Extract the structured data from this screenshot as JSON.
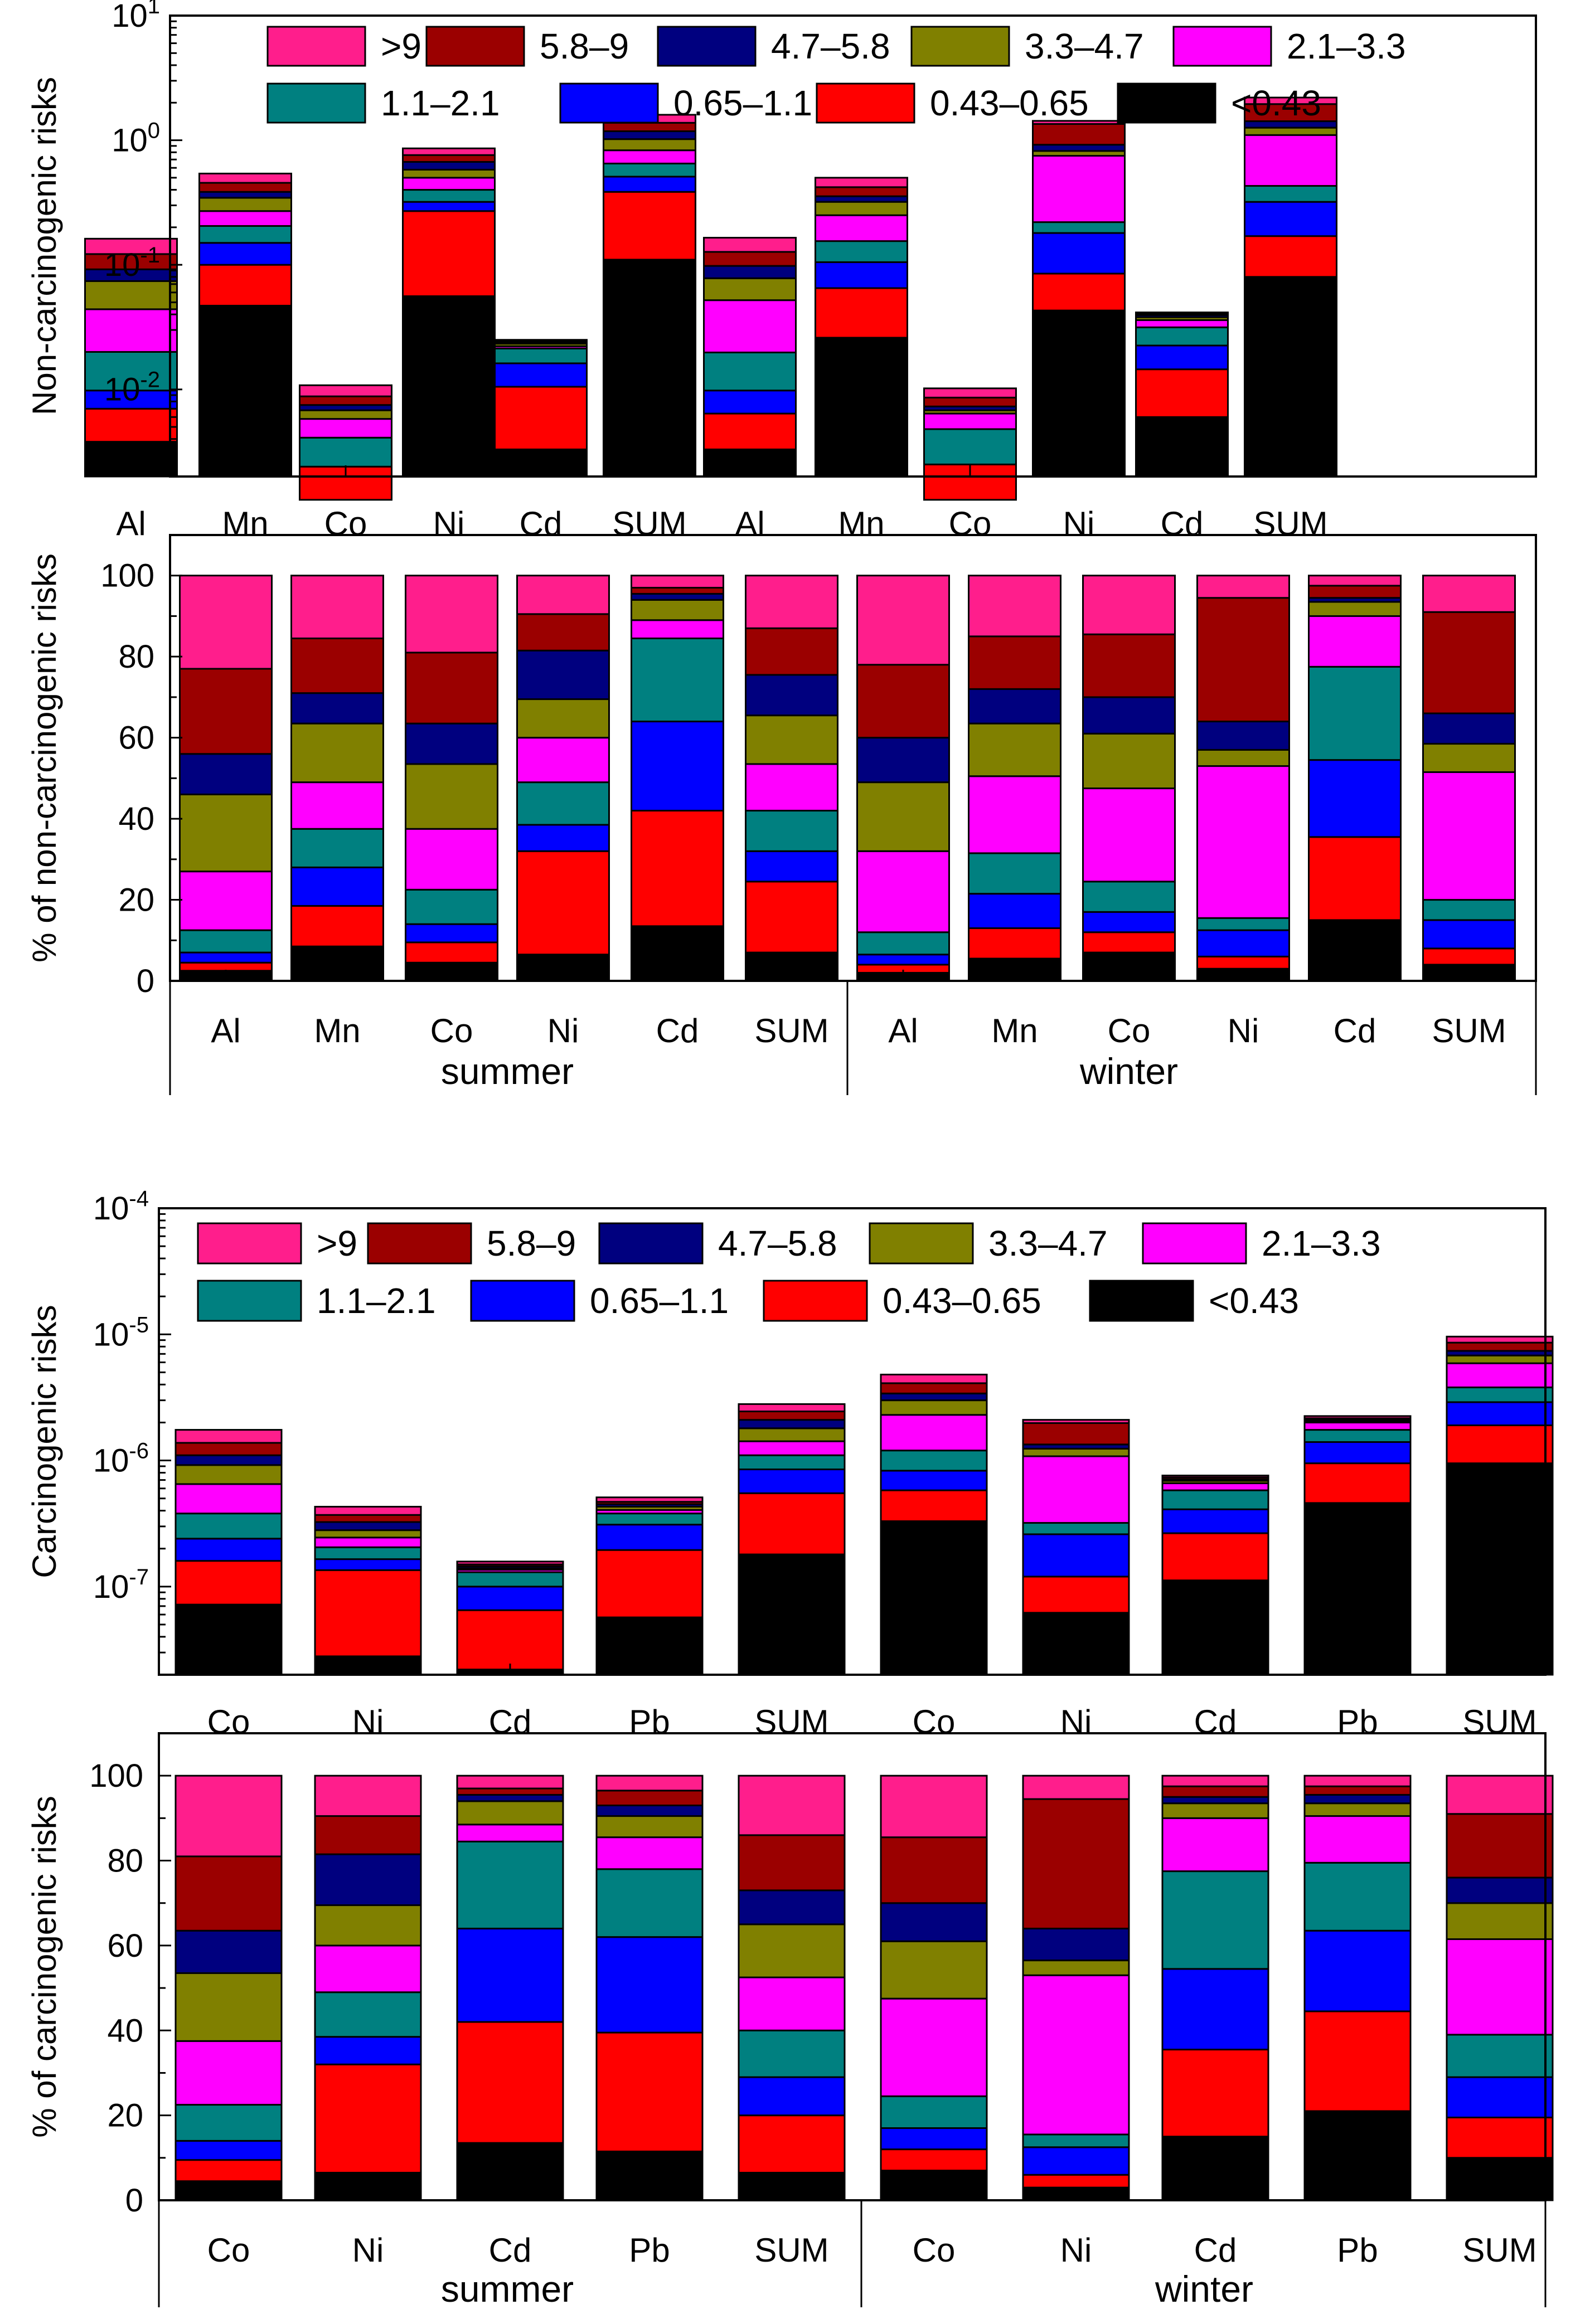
{
  "figure": {
    "bin_labels": [
      ">9",
      "5.8–9",
      "4.7–5.8",
      "3.3–4.7",
      "2.1–3.3",
      "1.1–2.1",
      "0.65–1.1",
      "0.43–0.65",
      "<0.43"
    ],
    "colors": [
      "#ff1e8c",
      "#9b0000",
      "#00007f",
      "#808000",
      "#ff00ff",
      "#008080",
      "#0000ff",
      "#ff0000",
      "#000000"
    ]
  },
  "chart_data": [
    {
      "id": "nc_abs",
      "type": "bar",
      "stacked": true,
      "yscale": "log",
      "ylabel": "Non-carcinogenic risks",
      "ylim": [
        0.002,
        10
      ],
      "ytick_labels": [
        "10^-2",
        "10^-1",
        "10^0",
        "10^1"
      ],
      "categories": [
        "Al",
        "Mn",
        "Co",
        "Ni",
        "Cd",
        "SUM",
        "Al",
        "Mn",
        "Co",
        "Ni",
        "Cd",
        "SUM"
      ],
      "group_labels": [],
      "bin_labels": [
        ">9",
        "5.8–9",
        "4.7–5.8",
        "3.3–4.7",
        "2.1–3.3",
        "1.1–2.1",
        "0.65–1.1",
        "0.43–0.65",
        "<0.43"
      ],
      "legend": "top",
      "boundaries": [
        [
          0.0038,
          0.007,
          0.0098,
          0.02,
          0.044,
          0.074,
          0.092,
          0.122,
          0.162
        ],
        [
          0.047,
          0.1,
          0.15,
          0.205,
          0.27,
          0.345,
          0.385,
          0.455,
          0.54
        ],
        [
          0.0013,
          0.0024,
          0.0024,
          0.0041,
          0.0058,
          0.0068,
          0.0075,
          0.0088,
          0.0108
        ],
        [
          0.056,
          0.27,
          0.32,
          0.4,
          0.5,
          0.58,
          0.67,
          0.76,
          0.86
        ],
        [
          0.0033,
          0.0105,
          0.0162,
          0.0213,
          0.0222,
          0.0233,
          0.0238,
          0.0245,
          0.025
        ],
        [
          0.11,
          0.385,
          0.51,
          0.65,
          0.83,
          1.02,
          1.18,
          1.38,
          1.6
        ],
        [
          0.0033,
          0.0064,
          0.0098,
          0.0198,
          0.052,
          0.078,
          0.098,
          0.127,
          0.165
        ],
        [
          0.026,
          0.065,
          0.105,
          0.155,
          0.25,
          0.32,
          0.355,
          0.42,
          0.5
        ],
        [
          0.0013,
          0.0025,
          0.0025,
          0.0048,
          0.0064,
          0.0068,
          0.0073,
          0.0086,
          0.0102
        ],
        [
          0.043,
          0.085,
          0.18,
          0.22,
          0.75,
          0.82,
          0.92,
          1.35,
          1.43
        ],
        [
          0.006,
          0.0145,
          0.0225,
          0.0315,
          0.036,
          0.038,
          0.0395,
          0.0405,
          0.0415
        ],
        [
          0.08,
          0.17,
          0.32,
          0.43,
          1.1,
          1.26,
          1.42,
          1.95,
          2.2
        ]
      ]
    },
    {
      "id": "nc_pct",
      "type": "bar",
      "stacked": true,
      "yscale": "linear",
      "ylabel": "% of non-carcinogenic risks",
      "ylim": [
        0,
        110
      ],
      "ytick_labels": [
        "0",
        "20",
        "40",
        "60",
        "80",
        "100"
      ],
      "categories": [
        "Al",
        "Mn",
        "Co",
        "Ni",
        "Cd",
        "SUM",
        "Al",
        "Mn",
        "Co",
        "Ni",
        "Cd",
        "SUM"
      ],
      "group_labels": [
        "summer",
        "winter"
      ],
      "bin_labels": [
        ">9",
        "5.8–9",
        "4.7–5.8",
        "3.3–4.7",
        "2.1–3.3",
        "1.1–2.1",
        "0.65–1.1",
        "0.43–0.65",
        "<0.43"
      ],
      "legend": "none",
      "boundaries": [
        [
          2.5,
          4.5,
          7,
          12.5,
          27,
          46,
          56,
          77,
          100
        ],
        [
          8.5,
          18.5,
          28,
          37.5,
          49,
          63.5,
          71,
          84.5,
          100
        ],
        [
          4.5,
          9.5,
          14,
          22.5,
          37.5,
          53.5,
          63.5,
          81,
          100
        ],
        [
          6.5,
          32,
          38.5,
          49,
          60,
          69.5,
          81.5,
          90.5,
          100
        ],
        [
          13.5,
          42,
          64,
          84.5,
          89,
          94,
          95.5,
          97,
          100
        ],
        [
          7,
          24.5,
          32,
          42,
          53.5,
          65.5,
          75.5,
          87,
          100
        ],
        [
          2,
          4,
          6.5,
          12,
          32,
          49,
          60,
          78,
          100
        ],
        [
          5.5,
          13,
          21.5,
          31.5,
          50.5,
          63.5,
          72,
          85,
          100
        ],
        [
          7,
          12,
          17,
          24.5,
          47.5,
          61,
          70,
          85.5,
          100
        ],
        [
          3,
          6,
          12.5,
          15.5,
          53,
          57,
          64,
          94.5,
          100
        ],
        [
          15,
          35.5,
          54.5,
          77.5,
          90,
          93.5,
          94.5,
          97.5,
          100
        ],
        [
          4,
          8,
          15,
          20,
          51.5,
          58.5,
          66,
          91,
          100
        ]
      ]
    },
    {
      "id": "ca_abs",
      "type": "bar",
      "stacked": true,
      "yscale": "log",
      "ylabel": "Carcinogenic risks",
      "ylim": [
        2e-08,
        0.0001
      ],
      "ytick_labels": [
        "10^-7",
        "10^-6",
        "10^-5",
        "10^-4"
      ],
      "categories": [
        "Co",
        "Ni",
        "Cd",
        "Pb",
        "SUM",
        "Co",
        "Ni",
        "Cd",
        "Pb",
        "SUM"
      ],
      "group_labels": [],
      "bin_labels": [
        ">9",
        "5.8–9",
        "4.7–5.8",
        "3.3–4.7",
        "2.1–3.3",
        "1.1–2.1",
        "0.65–1.1",
        "0.43–0.65",
        "<0.43"
      ],
      "legend": "top",
      "boundaries": [
        [
          7.2e-08,
          1.6e-07,
          2.4e-07,
          3.8e-07,
          6.5e-07,
          9.2e-07,
          1.1e-06,
          1.38e-06,
          1.75e-06
        ],
        [
          2.8e-08,
          1.35e-07,
          1.65e-07,
          2.05e-07,
          2.45e-07,
          2.8e-07,
          3.25e-07,
          3.7e-07,
          4.3e-07
        ],
        [
          2.2e-08,
          6.5e-08,
          1e-07,
          1.3e-07,
          1.36e-07,
          1.4e-07,
          1.45e-07,
          1.5e-07,
          1.58e-07
        ],
        [
          5.7e-08,
          1.95e-07,
          3.1e-07,
          3.8e-07,
          4.05e-07,
          4.3e-07,
          4.5e-07,
          4.7e-07,
          5.1e-07
        ],
        [
          1.8e-07,
          5.5e-07,
          8.5e-07,
          1.1e-06,
          1.42e-06,
          1.8e-06,
          2.1e-06,
          2.45e-06,
          2.8e-06
        ],
        [
          3.3e-07,
          5.8e-07,
          8.3e-07,
          1.2e-06,
          2.3e-06,
          3e-06,
          3.4e-06,
          4.1e-06,
          4.8e-06
        ],
        [
          6.2e-08,
          1.2e-07,
          2.6e-07,
          3.2e-07,
          1.08e-06,
          1.24e-06,
          1.34e-06,
          1.98e-06,
          2.1e-06
        ],
        [
          1.12e-07,
          2.65e-07,
          4.1e-07,
          5.8e-07,
          6.6e-07,
          6.9e-07,
          7.1e-07,
          7.35e-07,
          7.6e-07
        ],
        [
          4.6e-07,
          9.5e-07,
          1.4e-06,
          1.75e-06,
          2e-06,
          2.05e-06,
          2.1e-06,
          2.16e-06,
          2.25e-06
        ],
        [
          9.5e-07,
          1.9e-06,
          2.9e-06,
          3.8e-06,
          5.9e-06,
          6.8e-06,
          7.4e-06,
          8.6e-06,
          9.6e-06
        ]
      ]
    },
    {
      "id": "ca_pct",
      "type": "bar",
      "stacked": true,
      "yscale": "linear",
      "ylabel": "% of carcinogenic risks",
      "ylim": [
        0,
        110
      ],
      "ytick_labels": [
        "0",
        "20",
        "40",
        "60",
        "80",
        "100"
      ],
      "categories": [
        "Co",
        "Ni",
        "Cd",
        "Pb",
        "SUM",
        "Co",
        "Ni",
        "Cd",
        "Pb",
        "SUM"
      ],
      "group_labels": [
        "summer",
        "winter"
      ],
      "bin_labels": [
        ">9",
        "5.8–9",
        "4.7–5.8",
        "3.3–4.7",
        "2.1–3.3",
        "1.1–2.1",
        "0.65–1.1",
        "0.43–0.65",
        "<0.43"
      ],
      "legend": "none",
      "boundaries": [
        [
          4.5,
          9.5,
          14,
          22.5,
          37.5,
          53.5,
          63.5,
          81,
          100
        ],
        [
          6.5,
          32,
          38.5,
          49,
          60,
          69.5,
          81.5,
          90.5,
          100
        ],
        [
          13.5,
          42,
          64,
          84.5,
          88.5,
          94,
          95.5,
          97,
          100
        ],
        [
          11.5,
          39.5,
          62,
          78,
          85.5,
          90.5,
          93,
          96.5,
          100
        ],
        [
          6.5,
          20,
          29,
          40,
          52.5,
          65,
          73,
          86,
          100
        ],
        [
          7,
          12,
          17,
          24.5,
          47.5,
          61,
          70,
          85.5,
          100
        ],
        [
          3,
          6,
          12.5,
          15.5,
          53,
          56.5,
          64,
          94.5,
          100
        ],
        [
          15,
          35.5,
          54.5,
          77.5,
          90,
          93.5,
          95,
          97.5,
          100
        ],
        [
          21,
          44.5,
          63.5,
          79.5,
          90.5,
          93.5,
          95.5,
          97.5,
          100
        ],
        [
          10,
          19.5,
          29,
          39,
          61.5,
          70,
          76,
          91,
          100
        ]
      ]
    }
  ]
}
